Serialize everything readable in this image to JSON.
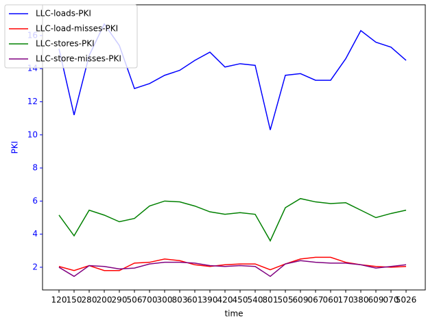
{
  "chart_data": {
    "type": "line",
    "xlabel": "time",
    "ylabel": "PKI",
    "categories": [
      "120",
      "150",
      "280",
      "200",
      "290",
      "506",
      "700",
      "300",
      "803",
      "601",
      "390",
      "420",
      "450",
      "540",
      "801",
      "505",
      "609",
      "067",
      "060",
      "170",
      "380",
      "609",
      "070",
      "5026"
    ],
    "series": [
      {
        "name": "LLC-loads-PKI",
        "color": "#0000ff",
        "values": [
          15.2,
          11.2,
          14.8,
          16.7,
          15.4,
          12.8,
          13.1,
          13.6,
          13.9,
          14.5,
          15.0,
          14.1,
          14.3,
          14.2,
          10.3,
          13.6,
          13.7,
          13.3,
          13.3,
          14.6,
          16.3,
          15.6,
          15.3,
          14.5
        ]
      },
      {
        "name": "LLC-load-misses-PKI",
        "color": "#ff0000",
        "values": [
          2.05,
          1.8,
          2.1,
          1.8,
          1.8,
          2.25,
          2.3,
          2.5,
          2.4,
          2.15,
          2.05,
          2.15,
          2.2,
          2.2,
          1.85,
          2.2,
          2.5,
          2.6,
          2.6,
          2.3,
          2.15,
          2.05,
          2.0,
          2.05
        ]
      },
      {
        "name": "LLC-stores-PKI",
        "color": "#008000",
        "values": [
          5.15,
          3.9,
          5.45,
          5.15,
          4.75,
          4.95,
          5.7,
          6.0,
          5.95,
          5.7,
          5.35,
          5.2,
          5.3,
          5.2,
          3.6,
          5.6,
          6.15,
          5.95,
          5.85,
          5.9,
          5.45,
          5.0,
          5.25,
          5.45
        ]
      },
      {
        "name": "LLC-store-misses-PKI",
        "color": "#800080",
        "values": [
          2.0,
          1.45,
          2.1,
          2.05,
          1.9,
          1.95,
          2.2,
          2.3,
          2.3,
          2.25,
          2.1,
          2.05,
          2.1,
          2.05,
          1.45,
          2.2,
          2.4,
          2.3,
          2.25,
          2.25,
          2.15,
          1.95,
          2.05,
          2.15
        ]
      }
    ],
    "ylim": [
      0.63,
      17.86
    ],
    "yticks": [
      2,
      4,
      6,
      8,
      10,
      12,
      14,
      16
    ],
    "ytick_color": "#0000ff",
    "legend": "upper left"
  }
}
